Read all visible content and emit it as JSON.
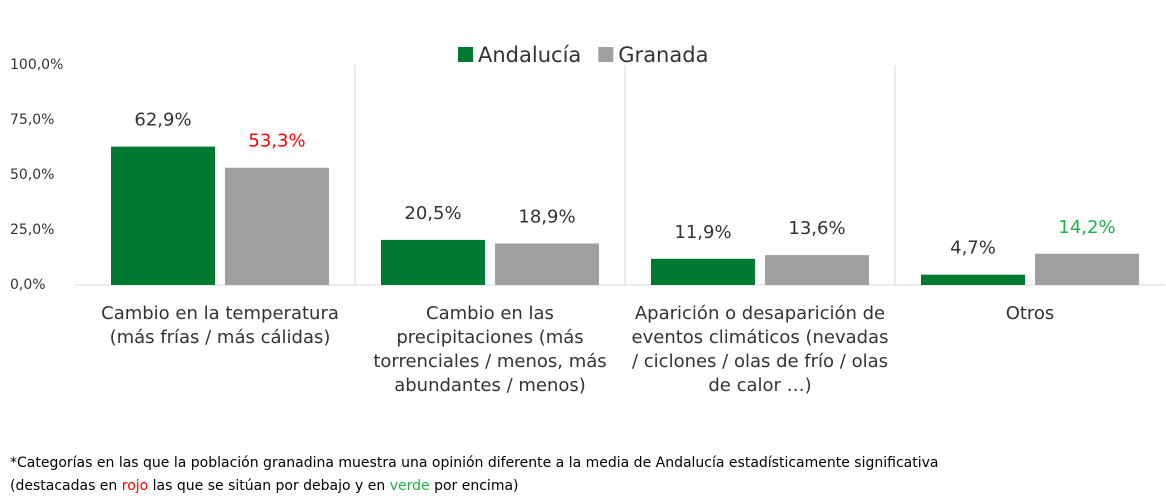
{
  "chart_data": {
    "type": "bar",
    "categories": [
      "Cambio en la temperatura (más frías / más cálidas)",
      "Cambio en las precipitaciones (más torrenciales / menos, más abundantes / menos)",
      "Aparición o desaparición de eventos climáticos (nevadas / ciclones / olas de frío / olas de calor …)",
      "Otros"
    ],
    "series": [
      {
        "name": "Andalucía",
        "color": "#007a33",
        "values": [
          62.9,
          20.5,
          11.9,
          4.7
        ],
        "value_labels": [
          "62,9%",
          "20,5%",
          "11,9%",
          "4,7%"
        ],
        "label_colors": [
          "#333333",
          "#333333",
          "#333333",
          "#333333"
        ]
      },
      {
        "name": "Granada",
        "color": "#a0a0a0",
        "values": [
          53.3,
          18.9,
          13.6,
          14.2
        ],
        "value_labels": [
          "53,3%",
          "18,9%",
          "13,6%",
          "14,2%"
        ],
        "label_colors": [
          "#ff0000",
          "#333333",
          "#333333",
          "#22b14c"
        ]
      }
    ],
    "ylim": [
      0,
      100
    ],
    "yticks": [
      {
        "value": 0,
        "label": "0,0%"
      },
      {
        "value": 25,
        "label": "25,0%"
      },
      {
        "value": 50,
        "label": "50,0%"
      },
      {
        "value": 75,
        "label": "75,0%"
      },
      {
        "value": 100,
        "label": "100,0%"
      }
    ],
    "legend": "top",
    "note": {
      "line1": "*Categorías en las que la población granadina muestra una opinión diferente a la media de Andalucía estadísticamente significativa",
      "line2": [
        "(destacadas en ",
        "rojo",
        " las que se sitúan por debajo y en ",
        "verde",
        " por encima)"
      ],
      "line2_colors": [
        "#000000",
        "#ff0000",
        "#000000",
        "#22b14c",
        "#000000"
      ]
    }
  }
}
